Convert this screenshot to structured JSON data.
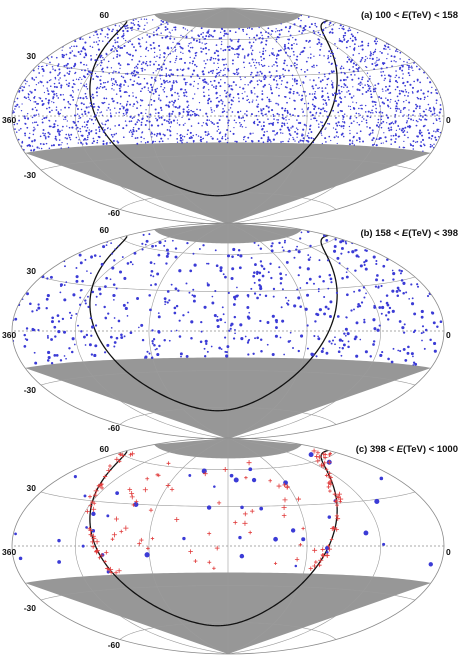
{
  "chart_data": [
    {
      "type": "scatter",
      "projection": "hammer-aitoff",
      "title_prefix": "(a) 100 <",
      "title_var": "E",
      "title_suffix": "(TeV) < 158",
      "lat_tick_labels": [
        "60",
        "30",
        "-30",
        "-60"
      ],
      "lon_tick_labels": [
        "360",
        "0"
      ],
      "fov_dec_range": [
        -20,
        70
      ],
      "series": [
        {
          "marker": "dot",
          "color": "#3b3bd6",
          "distribution": "dense uniform over field of view",
          "approx_count": 2600,
          "size_range": [
            0.6,
            1.1
          ]
        }
      ],
      "galactic_plane": true
    },
    {
      "type": "scatter",
      "projection": "hammer-aitoff",
      "title_prefix": "(b) 158 <",
      "title_var": "E",
      "title_suffix": "(TeV) < 398",
      "lat_tick_labels": [
        "60",
        "30",
        "-30",
        "-60"
      ],
      "lon_tick_labels": [
        "360",
        "0"
      ],
      "fov_dec_range": [
        -20,
        70
      ],
      "series": [
        {
          "marker": "dot",
          "color": "#3b3bd6",
          "distribution": "sparse uniform over field of view",
          "approx_count": 620,
          "size_range": [
            0.8,
            1.6
          ]
        }
      ],
      "galactic_plane": true
    },
    {
      "type": "scatter",
      "projection": "hammer-aitoff",
      "title_prefix": "(c) 398 <",
      "title_var": "E",
      "title_suffix": "(TeV) < 1000",
      "lat_tick_labels": [
        "60",
        "30",
        "-30",
        "-60"
      ],
      "lon_tick_labels": [
        "360",
        "0"
      ],
      "fov_dec_range": [
        -20,
        70
      ],
      "series": [
        {
          "marker": "dot",
          "color": "#3b3bd6",
          "distribution": "few events, some along galactic plane",
          "approx_count": 45,
          "size_range": [
            1.2,
            2.6
          ]
        },
        {
          "marker": "cross",
          "color": "#e03a3a",
          "distribution": "concentrated along galactic plane",
          "approx_count": 150,
          "size_range": [
            1.6,
            2.6
          ]
        }
      ],
      "galactic_plane": true
    }
  ]
}
